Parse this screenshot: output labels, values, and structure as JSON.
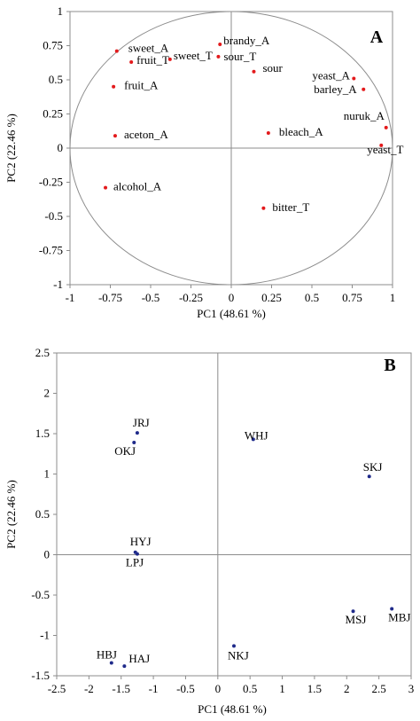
{
  "chart_data": [
    {
      "type": "scatter",
      "panel": "A",
      "xlabel": "PC1 (48.61 %)",
      "ylabel": "PC2 (22.46 %)",
      "xlim": [
        -1,
        1
      ],
      "ylim": [
        -1,
        1
      ],
      "xticks": [
        "-1",
        "-0.75",
        "-0.5",
        "-0.25",
        "0",
        "0.25",
        "0.5",
        "0.75",
        "1"
      ],
      "yticks": [
        "1",
        "0.75",
        "0.5",
        "0.25",
        "0",
        "-0.25",
        "-0.5",
        "-0.75",
        "-1"
      ],
      "unit_circle": true,
      "marker_color": "#e31a1c",
      "points": [
        {
          "label": "sweet_A",
          "x": -0.71,
          "y": 0.71
        },
        {
          "label": "fruit_T",
          "x": -0.62,
          "y": 0.63
        },
        {
          "label": "sweet_T",
          "x": -0.38,
          "y": 0.65
        },
        {
          "label": "brandy_A",
          "x": -0.07,
          "y": 0.76
        },
        {
          "label": "sour_T",
          "x": -0.08,
          "y": 0.67
        },
        {
          "label": "sour",
          "x": 0.14,
          "y": 0.56
        },
        {
          "label": "fruit_A",
          "x": -0.73,
          "y": 0.45
        },
        {
          "label": "yeast_A",
          "x": 0.76,
          "y": 0.51
        },
        {
          "label": "barley_A",
          "x": 0.82,
          "y": 0.43
        },
        {
          "label": "nuruk_A",
          "x": 0.96,
          "y": 0.15
        },
        {
          "label": "yeast_T",
          "x": 0.93,
          "y": 0.02
        },
        {
          "label": "aceton_A",
          "x": -0.72,
          "y": 0.09
        },
        {
          "label": "bleach_A",
          "x": 0.23,
          "y": 0.11
        },
        {
          "label": "alcohol_A",
          "x": -0.78,
          "y": -0.29
        },
        {
          "label": "bitter_T",
          "x": 0.2,
          "y": -0.44
        }
      ]
    },
    {
      "type": "scatter",
      "panel": "B",
      "xlabel": "PC1 (48.61 %)",
      "ylabel": "PC2 (22.46 %)",
      "xlim": [
        -2.5,
        3
      ],
      "ylim": [
        -1.5,
        2.5
      ],
      "xticks": [
        "-2.5",
        "-2",
        "-1.5",
        "-1",
        "-0.5",
        "0",
        "0.5",
        "1",
        "1.5",
        "2",
        "2.5",
        "3"
      ],
      "yticks": [
        "2.5",
        "2",
        "1.5",
        "1",
        "0.5",
        "0",
        "-0.5",
        "-1",
        "-1.5"
      ],
      "marker_color": "#1f2a8a",
      "points": [
        {
          "label": "JRJ",
          "x": -1.25,
          "y": 1.51
        },
        {
          "label": "OKJ",
          "x": -1.3,
          "y": 1.39
        },
        {
          "label": "WHJ",
          "x": 0.55,
          "y": 1.43
        },
        {
          "label": "SKJ",
          "x": 2.35,
          "y": 0.97
        },
        {
          "label": "HYJ",
          "x": -1.28,
          "y": 0.03
        },
        {
          "label": "LPJ",
          "x": -1.25,
          "y": 0.01
        },
        {
          "label": "MSJ",
          "x": 2.1,
          "y": -0.7
        },
        {
          "label": "MBJ",
          "x": 2.7,
          "y": -0.67
        },
        {
          "label": "HBJ",
          "x": -1.65,
          "y": -1.34
        },
        {
          "label": "HAJ",
          "x": -1.45,
          "y": -1.38
        },
        {
          "label": "NKJ",
          "x": 0.25,
          "y": -1.13
        }
      ]
    }
  ]
}
